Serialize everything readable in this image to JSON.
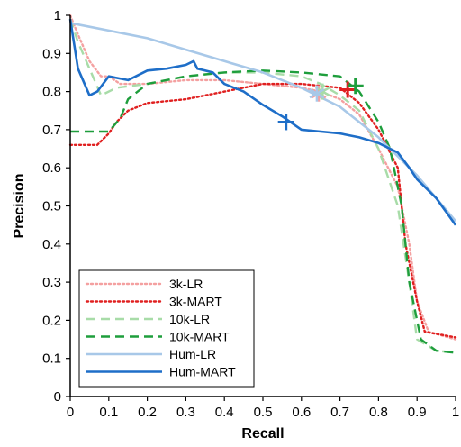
{
  "chart_data": {
    "type": "line",
    "title": "",
    "xlabel": "Recall",
    "ylabel": "Precision",
    "xlim": [
      0,
      1
    ],
    "ylim": [
      0,
      1
    ],
    "xticks": [
      "0",
      "0.1",
      "0.2",
      "0.3",
      "0.4",
      "0.5",
      "0.6",
      "0.7",
      "0.8",
      "0.9",
      "1"
    ],
    "yticks": [
      "0",
      "0.1",
      "0.2",
      "0.3",
      "0.4",
      "0.5",
      "0.6",
      "0.7",
      "0.8",
      "0.9",
      "1"
    ],
    "grid": false,
    "legend_position": "bottom-left",
    "series": [
      {
        "name": "3k-LR",
        "color": "#f4a0a0",
        "style": "dotted",
        "points": [
          [
            0.0,
            1.0
          ],
          [
            0.02,
            0.95
          ],
          [
            0.05,
            0.88
          ],
          [
            0.08,
            0.84
          ],
          [
            0.1,
            0.84
          ],
          [
            0.13,
            0.82
          ],
          [
            0.2,
            0.82
          ],
          [
            0.3,
            0.83
          ],
          [
            0.4,
            0.83
          ],
          [
            0.5,
            0.82
          ],
          [
            0.6,
            0.81
          ],
          [
            0.65,
            0.8
          ],
          [
            0.7,
            0.78
          ],
          [
            0.75,
            0.74
          ],
          [
            0.8,
            0.65
          ],
          [
            0.85,
            0.55
          ],
          [
            0.88,
            0.4
          ],
          [
            0.9,
            0.25
          ],
          [
            0.93,
            0.17
          ],
          [
            1.0,
            0.15
          ]
        ]
      },
      {
        "name": "3k-MART",
        "color": "#e02020",
        "style": "dotted",
        "points": [
          [
            0.0,
            0.66
          ],
          [
            0.07,
            0.66
          ],
          [
            0.1,
            0.69
          ],
          [
            0.12,
            0.72
          ],
          [
            0.15,
            0.75
          ],
          [
            0.2,
            0.77
          ],
          [
            0.3,
            0.78
          ],
          [
            0.4,
            0.8
          ],
          [
            0.5,
            0.82
          ],
          [
            0.6,
            0.82
          ],
          [
            0.7,
            0.81
          ],
          [
            0.75,
            0.77
          ],
          [
            0.8,
            0.7
          ],
          [
            0.85,
            0.6
          ],
          [
            0.87,
            0.4
          ],
          [
            0.9,
            0.25
          ],
          [
            0.92,
            0.17
          ],
          [
            1.0,
            0.155
          ]
        ]
      },
      {
        "name": "10k-LR",
        "color": "#a8dca8",
        "style": "dashed",
        "points": [
          [
            0.0,
            0.99
          ],
          [
            0.02,
            0.93
          ],
          [
            0.05,
            0.86
          ],
          [
            0.08,
            0.79
          ],
          [
            0.12,
            0.81
          ],
          [
            0.2,
            0.82
          ],
          [
            0.3,
            0.84
          ],
          [
            0.4,
            0.85
          ],
          [
            0.5,
            0.85
          ],
          [
            0.6,
            0.84
          ],
          [
            0.65,
            0.82
          ],
          [
            0.7,
            0.79
          ],
          [
            0.75,
            0.75
          ],
          [
            0.8,
            0.65
          ],
          [
            0.85,
            0.5
          ],
          [
            0.88,
            0.3
          ],
          [
            0.9,
            0.15
          ],
          [
            0.95,
            0.12
          ],
          [
            1.0,
            0.115
          ]
        ]
      },
      {
        "name": "10k-MART",
        "color": "#1e9e3c",
        "style": "dashed",
        "points": [
          [
            0.0,
            0.695
          ],
          [
            0.1,
            0.695
          ],
          [
            0.13,
            0.73
          ],
          [
            0.15,
            0.78
          ],
          [
            0.2,
            0.82
          ],
          [
            0.3,
            0.84
          ],
          [
            0.4,
            0.85
          ],
          [
            0.5,
            0.855
          ],
          [
            0.6,
            0.85
          ],
          [
            0.7,
            0.84
          ],
          [
            0.75,
            0.8
          ],
          [
            0.8,
            0.72
          ],
          [
            0.83,
            0.65
          ],
          [
            0.86,
            0.5
          ],
          [
            0.88,
            0.3
          ],
          [
            0.91,
            0.15
          ],
          [
            0.95,
            0.12
          ],
          [
            1.0,
            0.115
          ]
        ]
      },
      {
        "name": "Hum-LR",
        "color": "#a8c8e8",
        "style": "solid",
        "points": [
          [
            0.0,
            0.98
          ],
          [
            0.05,
            0.97
          ],
          [
            0.1,
            0.96
          ],
          [
            0.2,
            0.94
          ],
          [
            0.3,
            0.91
          ],
          [
            0.4,
            0.88
          ],
          [
            0.5,
            0.85
          ],
          [
            0.6,
            0.81
          ],
          [
            0.7,
            0.76
          ],
          [
            0.8,
            0.68
          ],
          [
            0.85,
            0.63
          ],
          [
            0.9,
            0.58
          ],
          [
            0.95,
            0.52
          ],
          [
            1.0,
            0.46
          ]
        ]
      },
      {
        "name": "Hum-MART",
        "color": "#1e6ec8",
        "style": "solid",
        "points": [
          [
            0.0,
            0.99
          ],
          [
            0.02,
            0.86
          ],
          [
            0.05,
            0.79
          ],
          [
            0.07,
            0.8
          ],
          [
            0.1,
            0.84
          ],
          [
            0.15,
            0.83
          ],
          [
            0.2,
            0.855
          ],
          [
            0.25,
            0.86
          ],
          [
            0.3,
            0.87
          ],
          [
            0.32,
            0.88
          ],
          [
            0.33,
            0.86
          ],
          [
            0.37,
            0.85
          ],
          [
            0.4,
            0.82
          ],
          [
            0.45,
            0.8
          ],
          [
            0.5,
            0.765
          ],
          [
            0.55,
            0.735
          ],
          [
            0.6,
            0.7
          ],
          [
            0.65,
            0.695
          ],
          [
            0.7,
            0.69
          ],
          [
            0.75,
            0.68
          ],
          [
            0.8,
            0.665
          ],
          [
            0.85,
            0.64
          ],
          [
            0.88,
            0.6
          ],
          [
            0.9,
            0.57
          ],
          [
            0.95,
            0.52
          ],
          [
            1.0,
            0.45
          ]
        ]
      }
    ],
    "markers": [
      {
        "series": "3k-LR",
        "x": 0.645,
        "y": 0.795,
        "color": "#f4a0a0",
        "symbol": "asterisk"
      },
      {
        "series": "10k-LR",
        "x": 0.655,
        "y": 0.8,
        "color": "#a8dca8",
        "symbol": "asterisk"
      },
      {
        "series": "Hum-LR",
        "x": 0.64,
        "y": 0.795,
        "color": "#a8c8e8",
        "symbol": "asterisk"
      },
      {
        "series": "3k-MART",
        "x": 0.72,
        "y": 0.805,
        "color": "#e02020",
        "symbol": "plus"
      },
      {
        "series": "10k-MART",
        "x": 0.74,
        "y": 0.815,
        "color": "#1e9e3c",
        "symbol": "plus"
      },
      {
        "series": "Hum-MART",
        "x": 0.56,
        "y": 0.72,
        "color": "#1e6ec8",
        "symbol": "plus"
      }
    ]
  }
}
